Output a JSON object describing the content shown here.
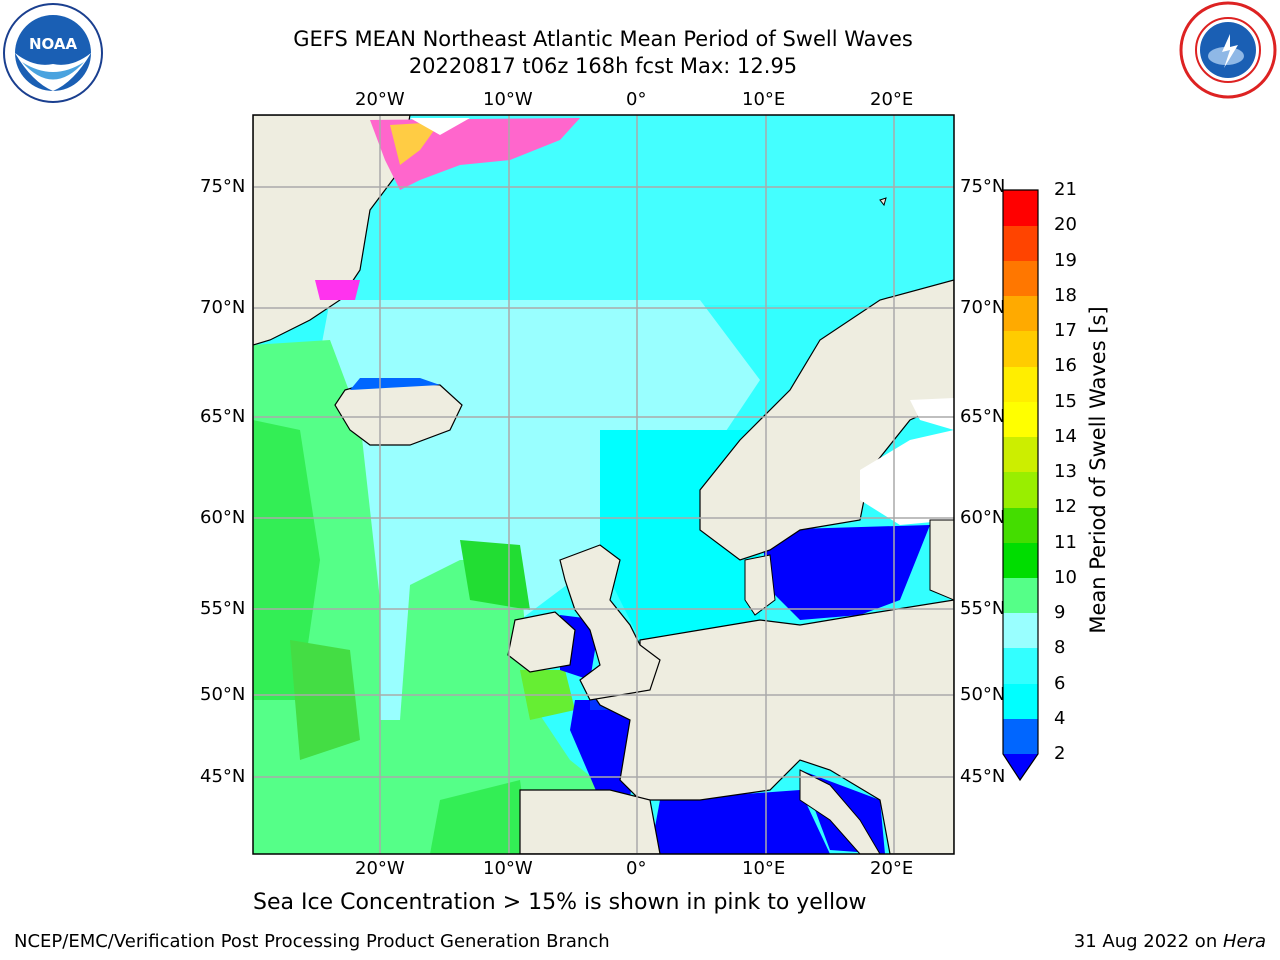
{
  "header": {
    "title_line1": "GEFS MEAN Northeast Atlantic Mean Period of Swell Waves",
    "title_line2": "20220817 t06z 168h fcst   Max: 12.95"
  },
  "logos": {
    "left": {
      "icon": "noaa-logo-icon",
      "text": "NOAA"
    },
    "right": {
      "icon": "national-weather-service-logo-icon"
    }
  },
  "map": {
    "lon_labels": [
      "20°W",
      "10°W",
      "0°",
      "10°E",
      "20°E"
    ],
    "lat_labels": [
      "75°N",
      "70°N",
      "65°N",
      "60°N",
      "55°N",
      "50°N",
      "45°N"
    ],
    "colors": {
      "land": "#eeede0",
      "ice_pink": "#ff66cc",
      "ice_yellow": "#ffcc44"
    }
  },
  "colorbar": {
    "label": "Mean Period of Swell Waves [s]",
    "ticks": [
      "2",
      "4",
      "6",
      "8",
      "9",
      "10",
      "11",
      "12",
      "13",
      "14",
      "15",
      "16",
      "17",
      "18",
      "19",
      "20",
      "21"
    ],
    "colors": [
      "#0000ff",
      "#0066ff",
      "#00ffff",
      "#33ffff",
      "#99ffff",
      "#55ff88",
      "#00dd00",
      "#44dd00",
      "#99ee00",
      "#ccee00",
      "#ffff00",
      "#ffee00",
      "#ffcc00",
      "#ffaa00",
      "#ff7700",
      "#ff4400",
      "#ff0000"
    ]
  },
  "caption": "Sea Ice Concentration > 15% is shown in pink to yellow",
  "footer": {
    "left": "NCEP/EMC/Verification Post Processing Product Generation Branch",
    "right_date": "31 Aug 2022 on ",
    "right_host": "Hera"
  }
}
